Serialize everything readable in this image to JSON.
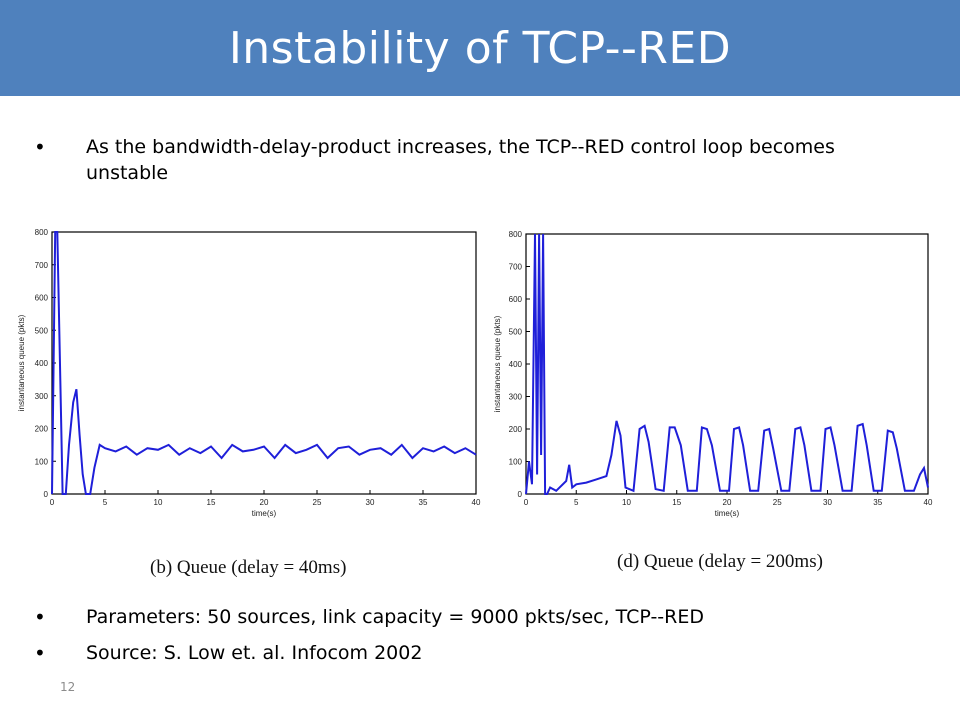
{
  "slide": {
    "title": "Instability of TCP--RED",
    "bullets": [
      "As the bandwidth-delay-product increases, the TCP--RED control loop becomes unstable",
      "Parameters: 50 sources, link capacity = 9000 pkts/sec, TCP--RED",
      "Source: S. Low et. al.  Infocom 2002"
    ],
    "bullet_glyph": "•",
    "page_number": "12"
  },
  "chart_data": [
    {
      "type": "line",
      "caption": "(b) Queue (delay = 40ms)",
      "xlabel": "time(s)",
      "ylabel": "instantaneous queue (pkts)",
      "xlim": [
        0,
        40
      ],
      "ylim": [
        0,
        800
      ],
      "x_ticks": [
        "0",
        "5",
        "10",
        "15",
        "20",
        "25",
        "30",
        "35",
        "40"
      ],
      "y_ticks": [
        "0",
        "100",
        "200",
        "300",
        "400",
        "500",
        "600",
        "700",
        "800"
      ],
      "line_color": "#1f1fd9",
      "x": [
        0,
        0.3,
        0.5,
        0.8,
        1.0,
        1.3,
        1.6,
        2.0,
        2.3,
        2.6,
        2.9,
        3.2,
        3.6,
        4.0,
        4.5,
        5,
        6,
        7,
        8,
        9,
        10,
        11,
        12,
        13,
        14,
        15,
        16,
        17,
        18,
        19,
        20,
        21,
        22,
        23,
        24,
        25,
        26,
        27,
        28,
        29,
        30,
        31,
        32,
        33,
        34,
        35,
        36,
        37,
        38,
        39,
        40
      ],
      "y": [
        0,
        800,
        800,
        320,
        0,
        0,
        150,
        280,
        320,
        180,
        60,
        0,
        0,
        80,
        150,
        140,
        130,
        145,
        120,
        140,
        135,
        150,
        120,
        140,
        125,
        145,
        110,
        150,
        130,
        135,
        145,
        110,
        150,
        125,
        135,
        150,
        110,
        140,
        145,
        120,
        135,
        140,
        120,
        150,
        110,
        140,
        130,
        145,
        125,
        140,
        120
      ]
    },
    {
      "type": "line",
      "caption": "(d) Queue (delay = 200ms)",
      "xlabel": "time(s)",
      "ylabel": "instantaneous queue (pkts)",
      "xlim": [
        0,
        40
      ],
      "ylim": [
        0,
        800
      ],
      "x_ticks": [
        "0",
        "5",
        "10",
        "15",
        "20",
        "25",
        "30",
        "35",
        "40"
      ],
      "y_ticks": [
        "0",
        "100",
        "200",
        "300",
        "400",
        "500",
        "600",
        "700",
        "800"
      ],
      "line_color": "#1f1fd9",
      "x": [
        0,
        0.3,
        0.6,
        0.9,
        1.1,
        1.3,
        1.5,
        1.7,
        1.9,
        2.1,
        2.4,
        3,
        4,
        4.3,
        4.6,
        5,
        6,
        7,
        8,
        8.5,
        9.0,
        9.4,
        9.9,
        10.7,
        11.3,
        11.8,
        12.2,
        12.9,
        13.7,
        14.3,
        14.8,
        15.4,
        16.1,
        17,
        17.5,
        18,
        18.5,
        19.3,
        20.2,
        20.7,
        21.2,
        21.6,
        22.3,
        23.1,
        23.7,
        24.2,
        24.6,
        25.4,
        26.2,
        26.8,
        27.3,
        27.7,
        28.4,
        29.3,
        29.8,
        30.3,
        30.7,
        31.5,
        32.4,
        33,
        33.5,
        33.9,
        34.6,
        35.4,
        36.0,
        36.5,
        36.9,
        37.7,
        38.6,
        39.2,
        39.6,
        40
      ],
      "y": [
        0,
        100,
        30,
        800,
        60,
        800,
        120,
        800,
        0,
        0,
        20,
        10,
        40,
        90,
        20,
        30,
        35,
        45,
        55,
        120,
        225,
        180,
        20,
        10,
        200,
        210,
        160,
        15,
        10,
        205,
        205,
        150,
        10,
        10,
        205,
        200,
        150,
        10,
        10,
        200,
        205,
        150,
        10,
        10,
        195,
        200,
        140,
        10,
        10,
        200,
        205,
        150,
        10,
        10,
        200,
        205,
        150,
        10,
        10,
        210,
        215,
        150,
        10,
        10,
        195,
        190,
        140,
        10,
        10,
        60,
        80,
        20
      ]
    }
  ]
}
